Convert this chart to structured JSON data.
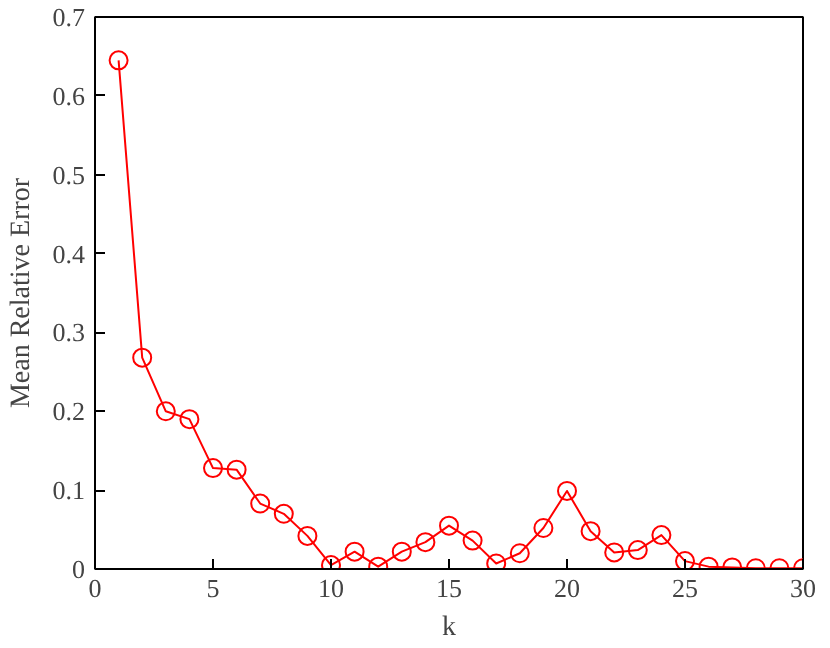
{
  "chart_data": {
    "type": "line",
    "xlabel": "k",
    "ylabel": "Mean Relative Error",
    "x": [
      1,
      2,
      3,
      4,
      5,
      6,
      7,
      8,
      9,
      10,
      11,
      12,
      13,
      14,
      15,
      16,
      17,
      18,
      19,
      20,
      21,
      22,
      23,
      24,
      25,
      26,
      27,
      28,
      29,
      30
    ],
    "series": [
      {
        "color": "#ff0000",
        "values": [
          0.645,
          0.268,
          0.2,
          0.19,
          0.128,
          0.126,
          0.083,
          0.07,
          0.042,
          0.005,
          0.022,
          0.003,
          0.022,
          0.034,
          0.055,
          0.036,
          0.007,
          0.02,
          0.052,
          0.099,
          0.048,
          0.021,
          0.024,
          0.043,
          0.01,
          0.003,
          0.002,
          0.001,
          0.001,
          0.001
        ]
      }
    ],
    "xlim": [
      0,
      30
    ],
    "xticks": [
      0,
      5,
      10,
      15,
      20,
      25,
      30
    ],
    "ylim": [
      0,
      0.7
    ],
    "yticks": [
      0,
      0.1,
      0.2,
      0.3,
      0.4,
      0.5,
      0.6,
      0.7
    ],
    "grid": false,
    "marker": "circle",
    "line_style": "solid"
  }
}
